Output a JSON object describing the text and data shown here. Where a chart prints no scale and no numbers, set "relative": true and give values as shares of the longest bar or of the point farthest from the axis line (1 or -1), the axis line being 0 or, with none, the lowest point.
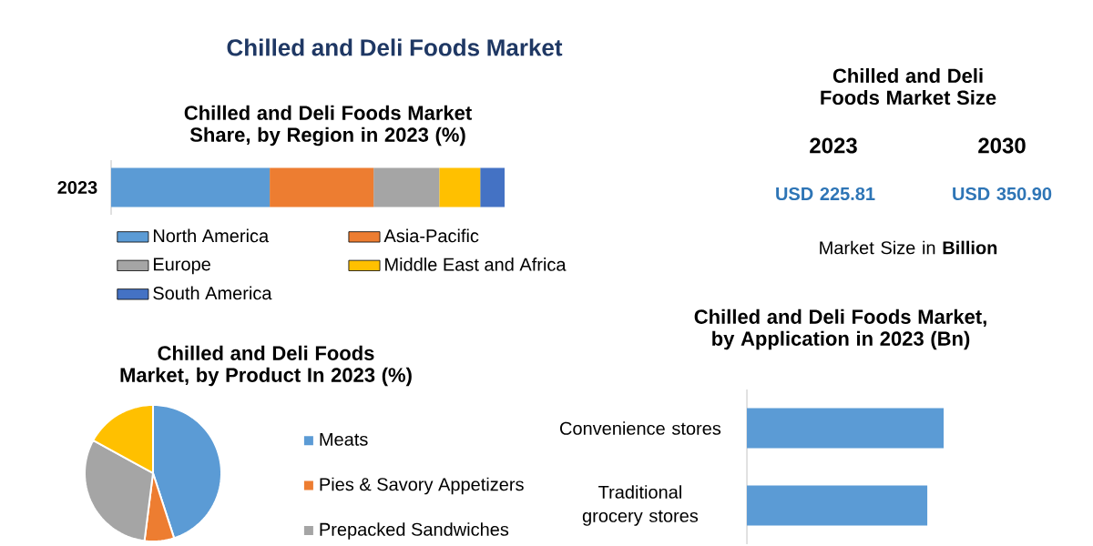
{
  "chart_data": [
    {
      "type": "bar",
      "title": "Chilled and Deli Foods Market",
      "subtitle": "Chilled and Deli Foods Market Share, by Region in 2023 (%)",
      "orientation": "horizontal",
      "stacked": true,
      "relative": true,
      "legend": "bottom",
      "categories": [
        "2023"
      ],
      "series": [
        {
          "name": "North America",
          "color": "#5b9bd5",
          "values": [
            0.403
          ]
        },
        {
          "name": "Asia-Pacific",
          "color": "#ed7d31",
          "values": [
            0.264
          ]
        },
        {
          "name": "Europe",
          "color": "#a5a5a5",
          "values": [
            0.167
          ]
        },
        {
          "name": "Middle East and Africa",
          "color": "#ffc000",
          "values": [
            0.104
          ]
        },
        {
          "name": "South America",
          "color": "#4472c4",
          "values": [
            0.062
          ]
        }
      ]
    },
    {
      "type": "other",
      "title": "Chilled and Deli Foods Market Size",
      "annotations": [
        "2023",
        "2030",
        "USD 225.81",
        "USD 350.90",
        "Market Size in **Billion**"
      ]
    },
    {
      "type": "pie",
      "title": "Chilled and Deli Foods Market, by Product In 2023 (%)",
      "legend": "right",
      "categories": [
        "Meats",
        "Pies & Savory Appetizers",
        "Prepacked Sandwiches",
        null
      ],
      "values": [
        45,
        7,
        31,
        17
      ],
      "colors": [
        "#5b9bd5",
        "#ed7d31",
        "#a5a5a5",
        "#ffc000"
      ]
    },
    {
      "type": "bar",
      "title": "Chilled and Deli Foods Market, by Application in 2023 (Bn)",
      "orientation": "horizontal",
      "relative": true,
      "categories": [
        "Convenience stores",
        "Traditional grocery stores"
      ],
      "values": [
        1,
        0.917
      ],
      "color": "#5b9bd5"
    }
  ]
}
